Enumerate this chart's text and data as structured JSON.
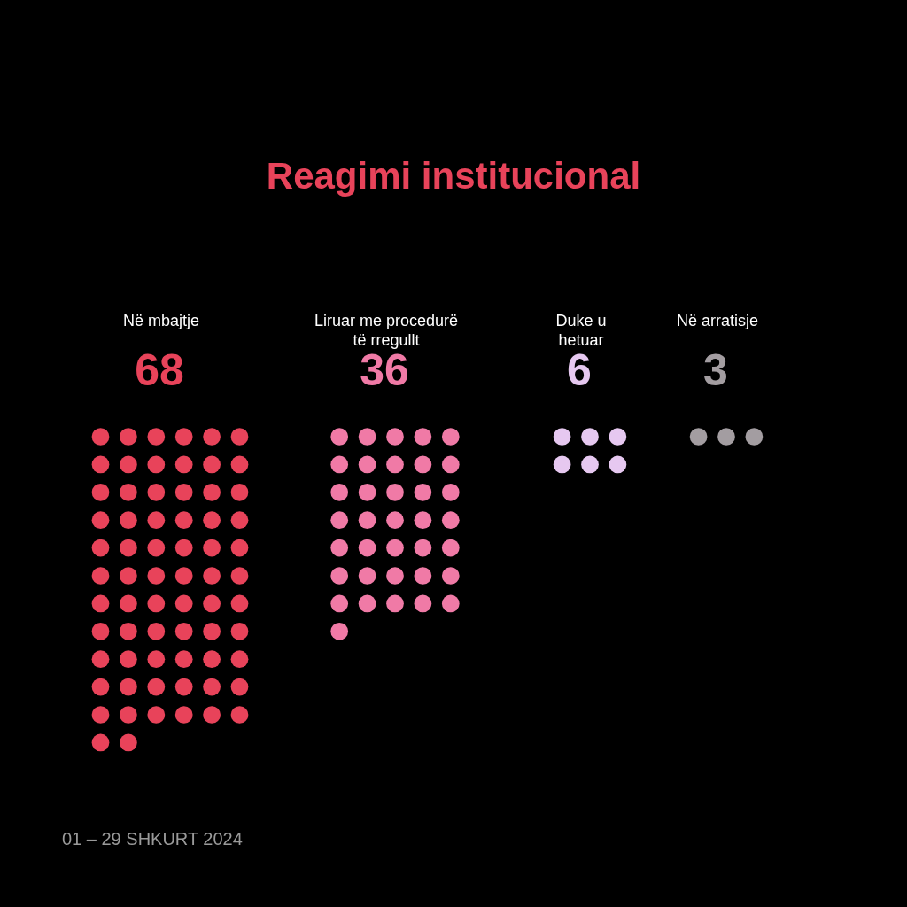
{
  "chart_data": {
    "type": "other",
    "title": "Reagimi institucional",
    "categories": [
      "Në mbajtje",
      "Liruar me procedurë të rregullt",
      "Duke u hetuar",
      "Në arratisje"
    ],
    "values": [
      68,
      36,
      6,
      3
    ],
    "colors": [
      "#e8435a",
      "#f07aa6",
      "#e6c8f0",
      "#a39da1"
    ],
    "data_labels": true,
    "annotations": [
      "01 – 29 SHKURT 2024"
    ]
  }
}
